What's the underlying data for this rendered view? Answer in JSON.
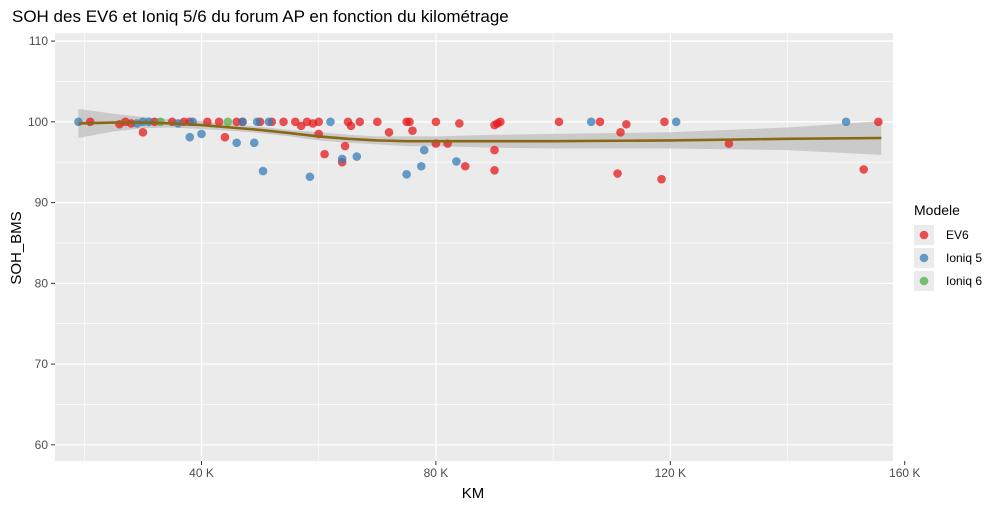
{
  "chart_data": {
    "type": "scatter",
    "title": "SOH des EV6 et Ioniq 5/6 du forum AP en fonction du kilométrage",
    "xlabel": "KM",
    "ylabel": "SOH_BMS",
    "xlim": [
      15000,
      158000
    ],
    "ylim": [
      58,
      111
    ],
    "x_ticks": [
      40000,
      80000,
      120000,
      160000
    ],
    "x_tick_labels": [
      "40 K",
      "80 K",
      "120 K",
      "160 K"
    ],
    "y_ticks": [
      60,
      70,
      80,
      90,
      100,
      110
    ],
    "y_tick_labels": [
      "60",
      "70",
      "80",
      "90",
      "100",
      "110"
    ],
    "grid": true,
    "legend": {
      "title": "Modele",
      "position": "right",
      "entries": [
        {
          "label": "EV6",
          "color": "#e41a1c"
        },
        {
          "label": "Ioniq 5",
          "color": "#377eb8"
        },
        {
          "label": "Ioniq 6",
          "color": "#4daf4a"
        }
      ]
    },
    "colors": {
      "panel_bg": "#ebebeb",
      "grid": "#ffffff",
      "smooth_line": "#8b6914",
      "ribbon": "#c4c4c4"
    },
    "series": [
      {
        "name": "EV6",
        "color": "#e41a1c",
        "points": [
          [
            21000,
            100
          ],
          [
            26000,
            99.7
          ],
          [
            27000,
            100
          ],
          [
            28000,
            99.8
          ],
          [
            30000,
            98.7
          ],
          [
            32000,
            100
          ],
          [
            35000,
            100
          ],
          [
            37000,
            100
          ],
          [
            38000,
            100
          ],
          [
            41000,
            100
          ],
          [
            43000,
            100
          ],
          [
            44000,
            98.1
          ],
          [
            46000,
            100
          ],
          [
            47000,
            100
          ],
          [
            50000,
            100
          ],
          [
            52000,
            100
          ],
          [
            54000,
            100
          ],
          [
            56000,
            100
          ],
          [
            57000,
            99.5
          ],
          [
            58000,
            100
          ],
          [
            59000,
            99.8
          ],
          [
            60000,
            98.5
          ],
          [
            60000,
            100
          ],
          [
            61000,
            96
          ],
          [
            64000,
            95
          ],
          [
            64500,
            97
          ],
          [
            65000,
            100
          ],
          [
            65500,
            99.5
          ],
          [
            67000,
            100
          ],
          [
            70000,
            100
          ],
          [
            72000,
            98.7
          ],
          [
            75000,
            100
          ],
          [
            75500,
            100
          ],
          [
            76000,
            98.9
          ],
          [
            80000,
            97.3
          ],
          [
            80000,
            100
          ],
          [
            82000,
            97.3
          ],
          [
            84000,
            99.8
          ],
          [
            85000,
            94.5
          ],
          [
            90000,
            99.6
          ],
          [
            90000,
            96.5
          ],
          [
            90000,
            94
          ],
          [
            90500,
            99.8
          ],
          [
            91000,
            100
          ],
          [
            101000,
            100
          ],
          [
            108000,
            100
          ],
          [
            111000,
            93.6
          ],
          [
            111500,
            98.7
          ],
          [
            112500,
            99.7
          ],
          [
            118500,
            92.9
          ],
          [
            119000,
            100
          ],
          [
            130000,
            97.3
          ],
          [
            153000,
            94.1
          ],
          [
            155500,
            100
          ]
        ]
      },
      {
        "name": "Ioniq 5",
        "color": "#377eb8",
        "points": [
          [
            19000,
            100
          ],
          [
            29000,
            99.8
          ],
          [
            30000,
            100
          ],
          [
            31000,
            100
          ],
          [
            36000,
            99.8
          ],
          [
            38000,
            98.1
          ],
          [
            38500,
            100
          ],
          [
            40000,
            98.5
          ],
          [
            46000,
            97.4
          ],
          [
            47000,
            100
          ],
          [
            49000,
            97.4
          ],
          [
            49500,
            100
          ],
          [
            50500,
            93.9
          ],
          [
            51500,
            100
          ],
          [
            58500,
            93.2
          ],
          [
            62000,
            100
          ],
          [
            64000,
            95.4
          ],
          [
            66500,
            95.7
          ],
          [
            75000,
            93.5
          ],
          [
            77500,
            94.5
          ],
          [
            78000,
            96.5
          ],
          [
            83500,
            95.1
          ],
          [
            106500,
            100
          ],
          [
            121000,
            100
          ],
          [
            150000,
            100
          ]
        ]
      },
      {
        "name": "Ioniq 6",
        "color": "#4daf4a",
        "points": [
          [
            33000,
            100
          ],
          [
            44500,
            100
          ]
        ]
      }
    ],
    "smooth": {
      "x": [
        19000,
        25000,
        30000,
        35000,
        40000,
        45000,
        50000,
        55000,
        60000,
        65000,
        70000,
        75000,
        80000,
        90000,
        100000,
        120000,
        140000,
        156000
      ],
      "y": [
        99.8,
        99.9,
        99.9,
        99.8,
        99.6,
        99.3,
        99.0,
        98.6,
        98.2,
        97.9,
        97.7,
        97.6,
        97.6,
        97.6,
        97.6,
        97.7,
        97.9,
        98.0
      ],
      "lower": [
        98.0,
        98.8,
        99.2,
        99.3,
        99.1,
        98.9,
        98.6,
        98.2,
        97.7,
        97.4,
        97.2,
        97.0,
        97.0,
        96.8,
        96.7,
        96.7,
        96.5,
        95.9
      ],
      "upper": [
        101.6,
        101.0,
        100.6,
        100.3,
        100.1,
        99.7,
        99.4,
        99.0,
        98.7,
        98.4,
        98.2,
        98.2,
        98.2,
        98.4,
        98.5,
        98.7,
        99.3,
        100.1
      ]
    }
  }
}
